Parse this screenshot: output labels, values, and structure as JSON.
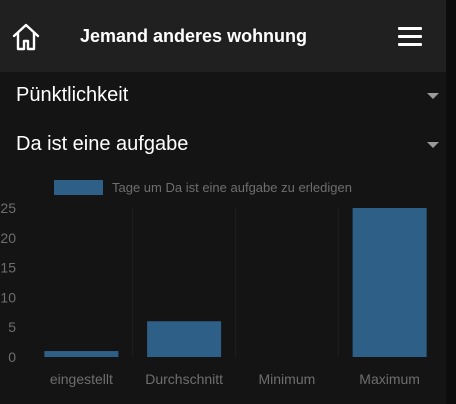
{
  "header": {
    "title": "Jemand anderes wohnung",
    "home_icon": "home-icon",
    "menu_icon": "hamburger-menu-icon"
  },
  "dropdowns": [
    {
      "label": "Pünktlichkeit"
    },
    {
      "label": "Da ist eine aufgabe"
    }
  ],
  "chart_data": {
    "type": "bar",
    "categories": [
      "eingestellt",
      "Durchschnitt",
      "Minimum",
      "Maximum"
    ],
    "series": [
      {
        "name": "Tage um Da ist eine aufgabe zu erledigen",
        "values": [
          1,
          6,
          0,
          25
        ],
        "color": "#2e5f86"
      }
    ],
    "ylim": [
      0,
      25
    ],
    "yticks": [
      0,
      5,
      10,
      15,
      20,
      25
    ],
    "grid": true,
    "legend": "top"
  }
}
